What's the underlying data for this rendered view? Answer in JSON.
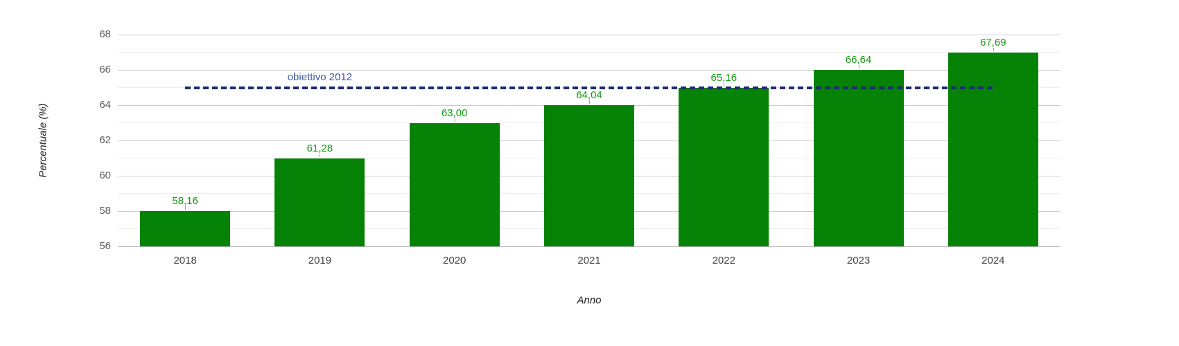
{
  "chart_data": {
    "type": "bar",
    "categories": [
      "2018",
      "2019",
      "2020",
      "2021",
      "2022",
      "2023",
      "2024"
    ],
    "series": [
      {
        "name": "Percentuale",
        "type": "bar",
        "values": [
          58.16,
          61.28,
          63.0,
          64.04,
          65.16,
          66.64,
          67.69
        ],
        "data_labels": [
          "58,16",
          "61,28",
          "63,00",
          "64,04",
          "65,16",
          "66,64",
          "67,69"
        ]
      }
    ],
    "target_line": {
      "label": "obiettivo 2012",
      "value": 65,
      "style": "dashed",
      "span_categories": [
        "2018",
        "2024"
      ],
      "label_anchor_category": "2019",
      "drawn_over_bars": true
    },
    "xlabel": "Anno",
    "ylabel": "Percentuale (%)",
    "ylim": [
      56,
      68
    ],
    "yticks": [
      56,
      58,
      60,
      62,
      64,
      66,
      68
    ],
    "grid": "major-and-minor-horizontal",
    "legend": "none",
    "value_label_position": "above-bar",
    "decimal_separator": ","
  },
  "colors": {
    "bar": "#068206",
    "bar_label": "#0f9b0f",
    "bar_stem": "#9e9e9e",
    "target_line": "#1c2b6d",
    "target_label": "#3c58a7",
    "grid_major": "#cccccc",
    "grid_minor": "#ececec",
    "baseline": "#b5b5b5",
    "y_tick_label": "#5e5e5e",
    "x_tick_label": "#404040",
    "axis_title": "#1f1f1f",
    "background": "#ffffff"
  }
}
